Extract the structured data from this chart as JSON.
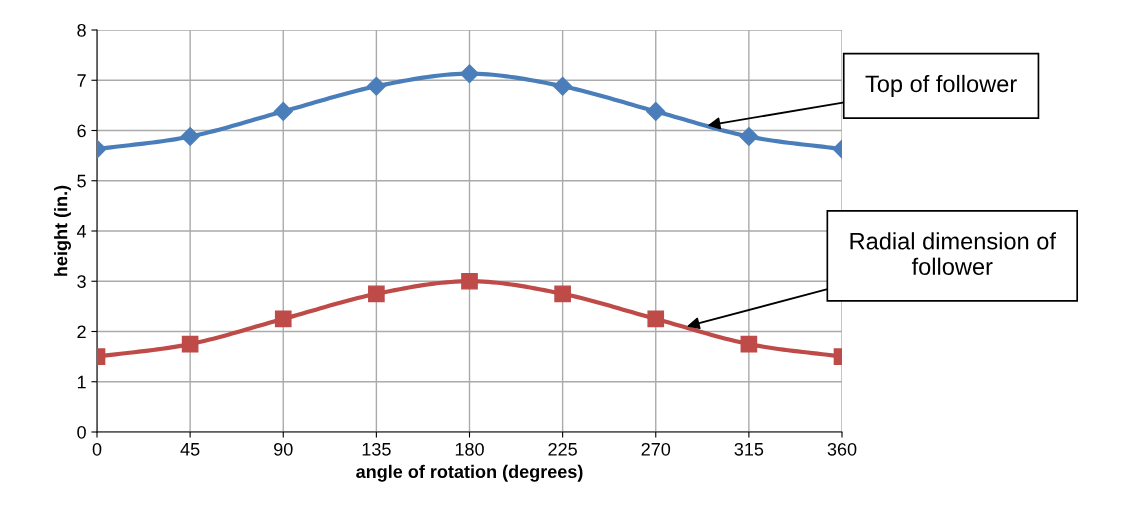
{
  "chart_data": {
    "type": "line",
    "xlabel": "angle of rotation (degrees)",
    "ylabel": "height (in.)",
    "x": [
      0,
      45,
      90,
      135,
      180,
      225,
      270,
      315,
      360
    ],
    "series": [
      {
        "color": "#4a7ebb",
        "marker": "diamond",
        "values": [
          5.63,
          5.88,
          6.38,
          6.88,
          7.13,
          6.88,
          6.38,
          5.88,
          5.63
        ]
      },
      {
        "color": "#be4b48",
        "marker": "square",
        "values": [
          1.5,
          1.75,
          2.25,
          2.75,
          3.0,
          2.75,
          2.25,
          1.75,
          1.5
        ]
      }
    ],
    "xlim": [
      0,
      360
    ],
    "xticks": [
      0,
      45,
      90,
      135,
      180,
      225,
      270,
      315,
      360
    ],
    "ylim": [
      0,
      8
    ],
    "yticks": [
      0,
      1,
      2,
      3,
      4,
      5,
      6,
      7,
      8
    ],
    "grid": true,
    "legend": false,
    "line_style": "solid",
    "annotations": [
      {
        "text": "Top of follower",
        "x": 295,
        "y": 6.1
      },
      {
        "text": "Radial dimension of\nfollower",
        "x": 285,
        "y": 2.1
      }
    ]
  }
}
